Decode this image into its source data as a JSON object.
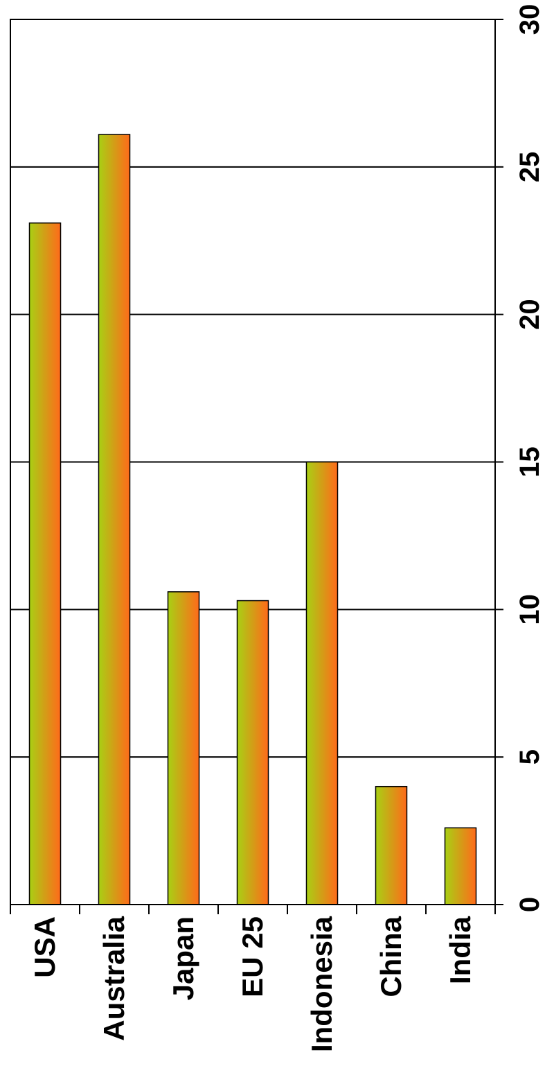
{
  "chart_data": {
    "type": "bar",
    "orientation": "rotated-90-clockwise",
    "categories": [
      "USA",
      "Australia",
      "Japan",
      "EU 25",
      "Indonesia",
      "China",
      "India"
    ],
    "series": [
      {
        "values": [
          23.1,
          26.1,
          10.6,
          10.3,
          15.0,
          4.0,
          2.6
        ]
      }
    ],
    "title": "",
    "xlabel": "",
    "ylabel": "",
    "ylim": [
      0,
      30
    ],
    "yticks": [
      "0",
      "5",
      "10",
      "15",
      "20",
      "25",
      "30"
    ],
    "grid": true,
    "legend": "none",
    "colors": {
      "bar_gradient_start": "#a8d014",
      "bar_gradient_end": "#ff6a1a",
      "grid": "#000000",
      "background": "#ffffff"
    }
  }
}
